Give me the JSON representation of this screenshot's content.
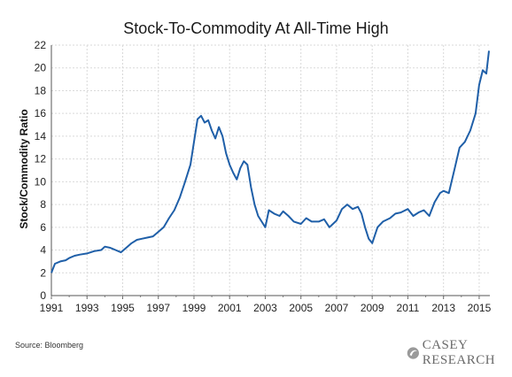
{
  "chart_data": {
    "type": "line",
    "title": "Stock-To-Commodity At All-Time High",
    "ylabel": "Stock/Commodity Ratio",
    "xlabel": "",
    "xlim": [
      1991,
      2015.6
    ],
    "ylim": [
      0,
      22
    ],
    "x_ticks": [
      "1991",
      "1993",
      "1995",
      "1997",
      "1999",
      "2001",
      "2003",
      "2005",
      "2007",
      "2009",
      "2011",
      "2013",
      "2015"
    ],
    "y_ticks": [
      "0",
      "2",
      "4",
      "6",
      "8",
      "10",
      "12",
      "14",
      "16",
      "18",
      "20",
      "22"
    ],
    "grid": true,
    "legend": "none",
    "series": [
      {
        "color": "#1f5fa8",
        "x": [
          1991.0,
          1991.2,
          1991.5,
          1991.8,
          1992.0,
          1992.3,
          1992.6,
          1993.0,
          1993.4,
          1993.8,
          1994.0,
          1994.3,
          1994.6,
          1994.9,
          1995.2,
          1995.5,
          1995.8,
          1996.1,
          1996.4,
          1996.7,
          1997.0,
          1997.3,
          1997.6,
          1997.9,
          1998.2,
          1998.5,
          1998.8,
          1999.0,
          1999.2,
          1999.4,
          1999.6,
          1999.8,
          2000.0,
          2000.2,
          2000.4,
          2000.6,
          2000.8,
          2001.0,
          2001.2,
          2001.4,
          2001.6,
          2001.8,
          2002.0,
          2002.2,
          2002.4,
          2002.6,
          2002.8,
          2003.0,
          2003.2,
          2003.5,
          2003.8,
          2004.0,
          2004.3,
          2004.6,
          2005.0,
          2005.3,
          2005.6,
          2006.0,
          2006.3,
          2006.6,
          2007.0,
          2007.3,
          2007.6,
          2007.9,
          2008.2,
          2008.4,
          2008.6,
          2008.8,
          2009.0,
          2009.3,
          2009.6,
          2010.0,
          2010.3,
          2010.6,
          2011.0,
          2011.3,
          2011.6,
          2011.9,
          2012.2,
          2012.5,
          2012.8,
          2013.0,
          2013.3,
          2013.6,
          2013.9,
          2014.2,
          2014.5,
          2014.8,
          2015.0,
          2015.2,
          2015.4,
          2015.55
        ],
        "y": [
          2.0,
          2.8,
          3.0,
          3.1,
          3.3,
          3.5,
          3.6,
          3.7,
          3.9,
          4.0,
          4.3,
          4.2,
          4.0,
          3.8,
          4.2,
          4.6,
          4.9,
          5.0,
          5.1,
          5.2,
          5.6,
          6.0,
          6.8,
          7.5,
          8.6,
          10.0,
          11.5,
          13.5,
          15.5,
          15.8,
          15.2,
          15.4,
          14.5,
          13.8,
          14.8,
          14.0,
          12.5,
          11.5,
          10.8,
          10.2,
          11.2,
          11.8,
          11.5,
          9.5,
          8.0,
          7.0,
          6.5,
          6.0,
          7.5,
          7.2,
          7.0,
          7.4,
          7.0,
          6.5,
          6.3,
          6.8,
          6.5,
          6.5,
          6.7,
          6.0,
          6.6,
          7.6,
          8.0,
          7.6,
          7.8,
          7.2,
          6.0,
          5.0,
          4.6,
          6.0,
          6.5,
          6.8,
          7.2,
          7.3,
          7.6,
          7.0,
          7.3,
          7.5,
          7.0,
          8.2,
          9.0,
          9.2,
          9.0,
          11.0,
          13.0,
          13.5,
          14.5,
          16.0,
          18.5,
          19.8,
          19.5,
          21.5
        ]
      }
    ]
  },
  "footer": {
    "source": "Source: Bloomberg",
    "logo_text": "CASEY RESEARCH"
  }
}
